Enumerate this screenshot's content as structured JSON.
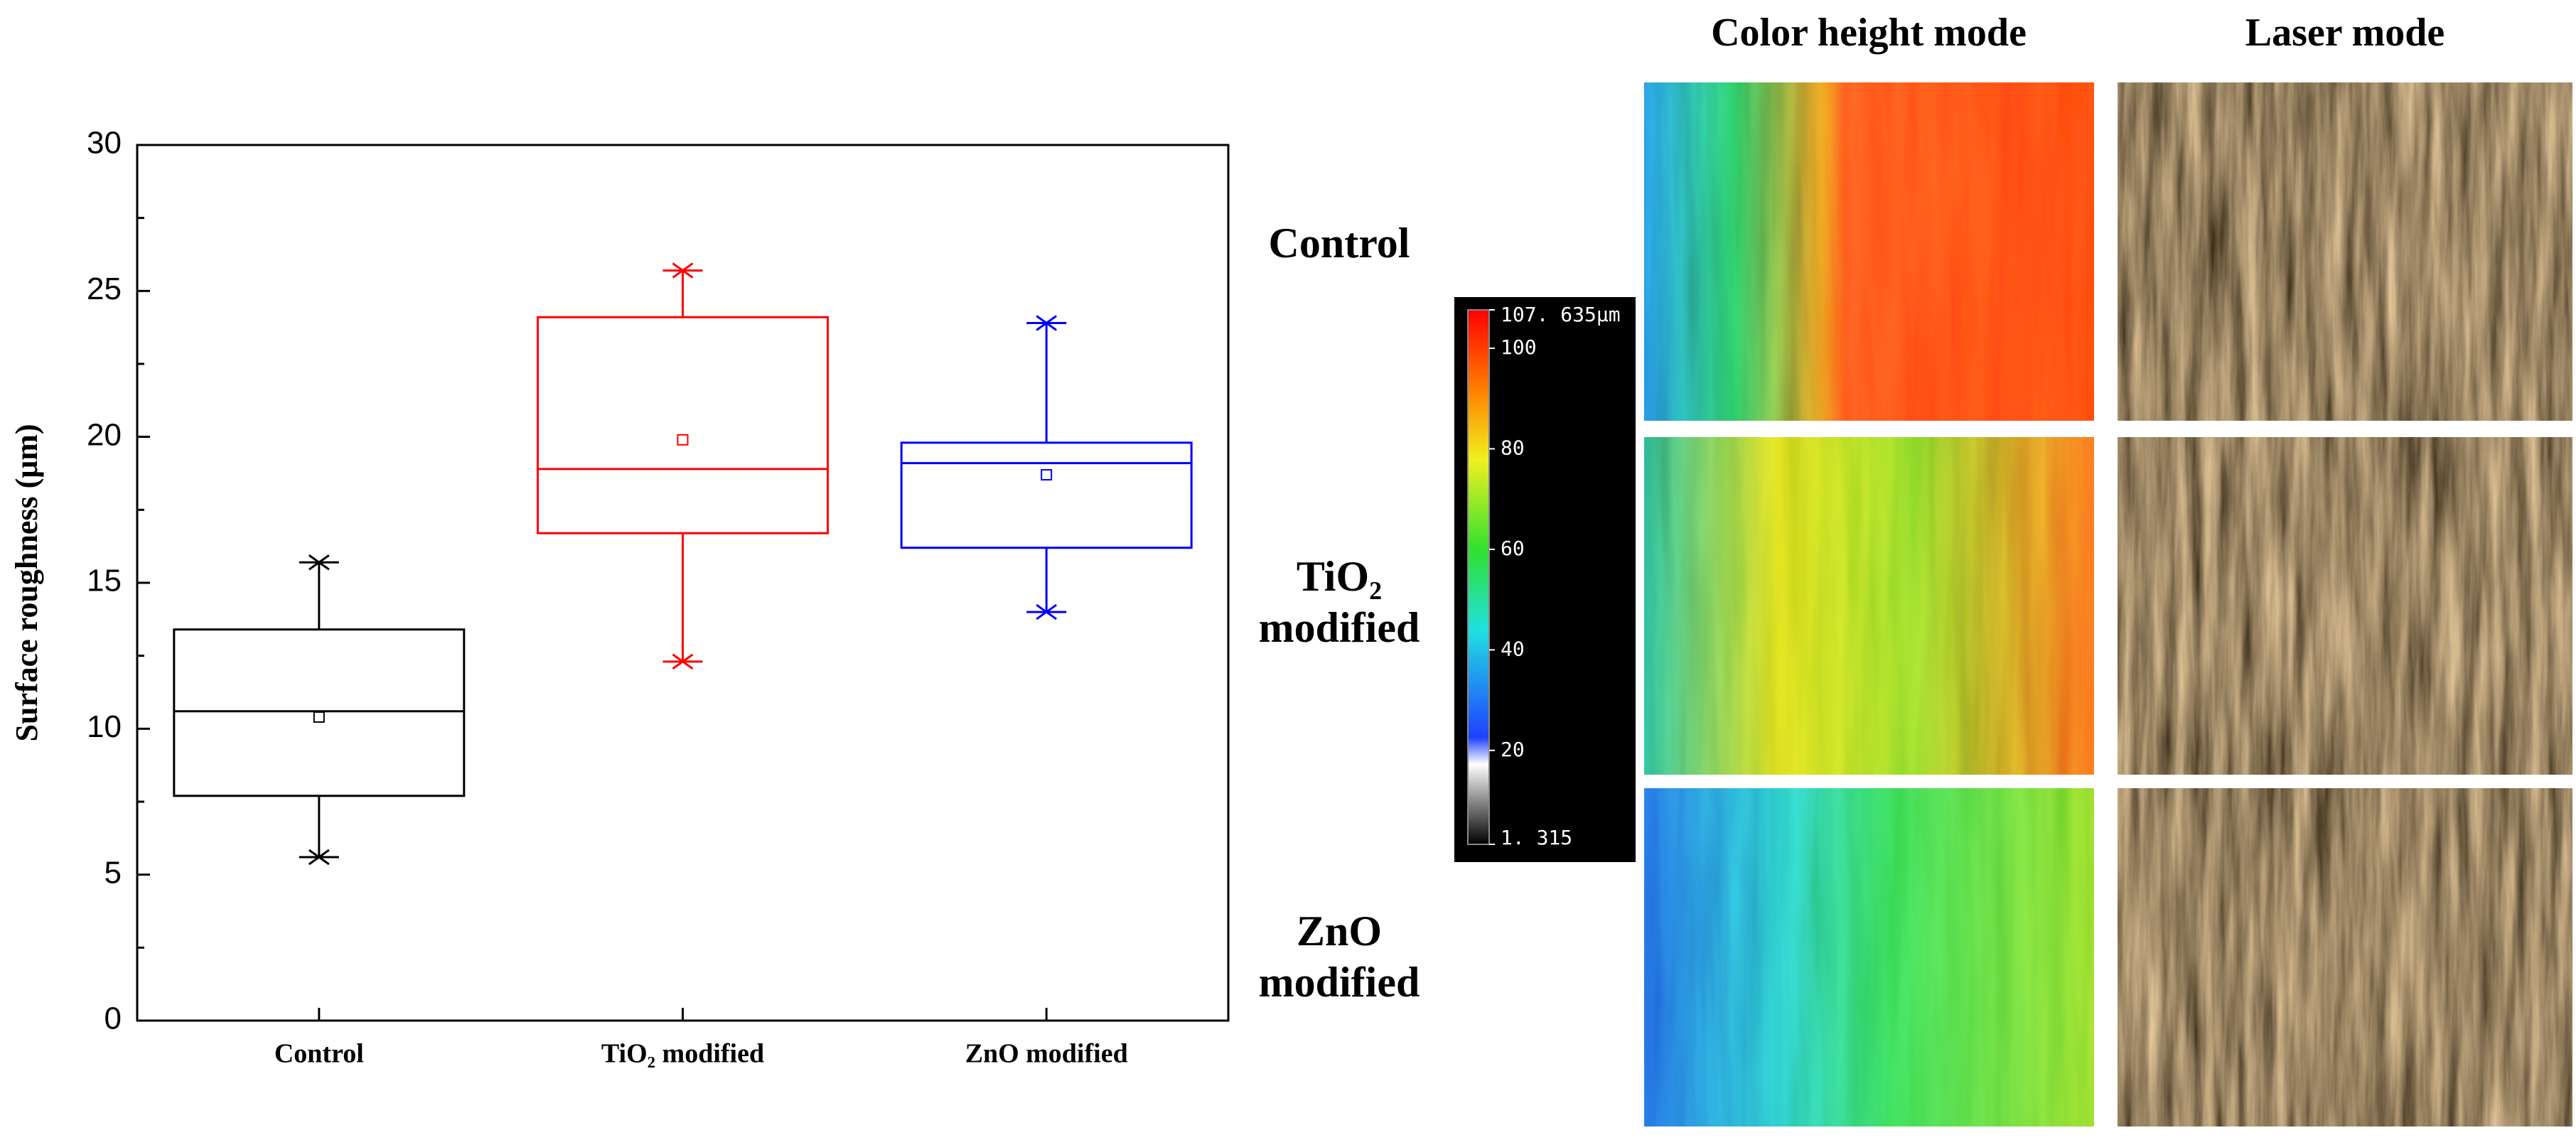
{
  "chart_data": {
    "type": "box",
    "y_label": "Surface roughness (μm)",
    "categories": [
      "Control",
      "TiO₂ modified",
      "ZnO modified"
    ],
    "colors": [
      "#000000",
      "#ff0000",
      "#0000ff"
    ],
    "boxes": [
      {
        "min": 5.6,
        "q1": 7.7,
        "median": 10.6,
        "q3": 13.4,
        "max": 15.7,
        "mean": 10.4
      },
      {
        "min": 12.3,
        "q1": 16.7,
        "median": 18.9,
        "q3": 24.1,
        "max": 25.7,
        "mean": 19.9
      },
      {
        "min": 14.0,
        "q1": 16.2,
        "median": 19.1,
        "q3": 19.8,
        "max": 23.9,
        "mean": 18.7
      }
    ],
    "ylim": [
      0,
      30
    ],
    "yticks": [
      0,
      5,
      10,
      15,
      20,
      25,
      30
    ]
  },
  "panel": {
    "column_headers": [
      "Color height mode",
      "Laser mode"
    ],
    "row_labels": [
      [
        "Control"
      ],
      [
        "TiO₂",
        "modified"
      ],
      [
        "ZnO",
        "modified"
      ]
    ],
    "colorbar": {
      "ticks": [
        {
          "value": 107.635,
          "label": "107. 635µm"
        },
        100,
        80,
        60,
        40,
        20,
        {
          "value": 1.315,
          "label": "1. 315"
        }
      ]
    }
  }
}
